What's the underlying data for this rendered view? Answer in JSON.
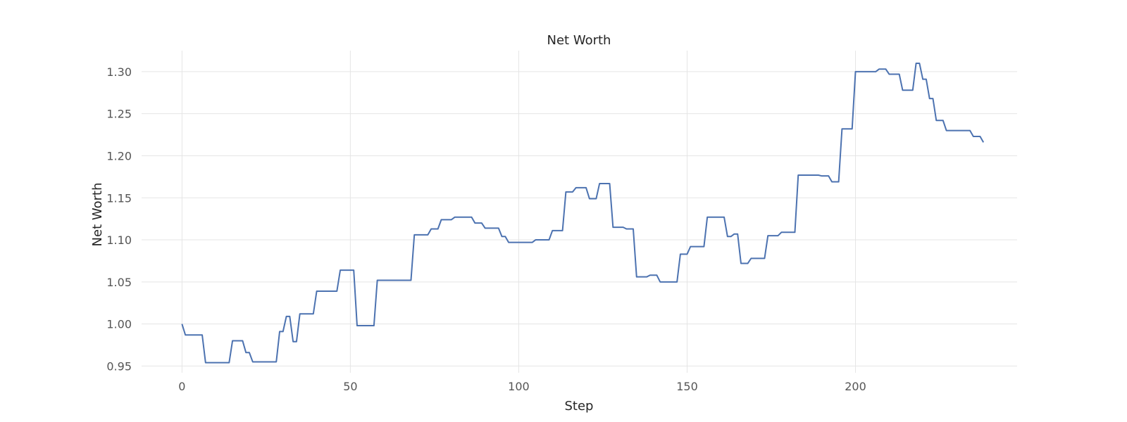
{
  "chart_data": {
    "type": "line",
    "title": "Net Worth",
    "xlabel": "Step",
    "ylabel": "Net Worth",
    "xlim": [
      -12,
      248
    ],
    "ylim": [
      0.942,
      1.325
    ],
    "xticks": [
      0,
      50,
      100,
      150,
      200
    ],
    "yticks": [
      0.95,
      1.0,
      1.05,
      1.1,
      1.15,
      1.2,
      1.25,
      1.3
    ],
    "grid": true,
    "legend": "none",
    "color": "#4c72b0",
    "series": [
      {
        "points": [
          [
            0,
            1.0
          ],
          [
            1,
            0.987
          ],
          [
            6,
            0.987
          ],
          [
            7,
            0.954
          ],
          [
            14,
            0.954
          ],
          [
            15,
            0.98
          ],
          [
            18,
            0.98
          ],
          [
            19,
            0.966
          ],
          [
            20,
            0.966
          ],
          [
            21,
            0.955
          ],
          [
            28,
            0.955
          ],
          [
            29,
            0.991
          ],
          [
            30,
            0.991
          ],
          [
            31,
            1.009
          ],
          [
            32,
            1.009
          ],
          [
            33,
            0.979
          ],
          [
            34,
            0.979
          ],
          [
            35,
            1.012
          ],
          [
            39,
            1.012
          ],
          [
            40,
            1.039
          ],
          [
            46,
            1.039
          ],
          [
            47,
            1.064
          ],
          [
            51,
            1.064
          ],
          [
            52,
            0.998
          ],
          [
            57,
            0.998
          ],
          [
            58,
            1.052
          ],
          [
            68,
            1.052
          ],
          [
            69,
            1.106
          ],
          [
            73,
            1.106
          ],
          [
            74,
            1.113
          ],
          [
            76,
            1.113
          ],
          [
            77,
            1.124
          ],
          [
            80,
            1.124
          ],
          [
            81,
            1.127
          ],
          [
            86,
            1.127
          ],
          [
            87,
            1.12
          ],
          [
            89,
            1.12
          ],
          [
            90,
            1.114
          ],
          [
            94,
            1.114
          ],
          [
            95,
            1.104
          ],
          [
            96,
            1.104
          ],
          [
            97,
            1.097
          ],
          [
            104,
            1.097
          ],
          [
            105,
            1.1
          ],
          [
            109,
            1.1
          ],
          [
            110,
            1.111
          ],
          [
            113,
            1.111
          ],
          [
            114,
            1.157
          ],
          [
            116,
            1.157
          ],
          [
            117,
            1.162
          ],
          [
            120,
            1.162
          ],
          [
            121,
            1.149
          ],
          [
            123,
            1.149
          ],
          [
            124,
            1.167
          ],
          [
            127,
            1.167
          ],
          [
            128,
            1.115
          ],
          [
            131,
            1.115
          ],
          [
            132,
            1.113
          ],
          [
            134,
            1.113
          ],
          [
            135,
            1.056
          ],
          [
            138,
            1.056
          ],
          [
            139,
            1.058
          ],
          [
            141,
            1.058
          ],
          [
            142,
            1.05
          ],
          [
            147,
            1.05
          ],
          [
            148,
            1.083
          ],
          [
            150,
            1.083
          ],
          [
            151,
            1.092
          ],
          [
            155,
            1.092
          ],
          [
            156,
            1.127
          ],
          [
            161,
            1.127
          ],
          [
            162,
            1.104
          ],
          [
            163,
            1.104
          ],
          [
            164,
            1.107
          ],
          [
            165,
            1.107
          ],
          [
            166,
            1.072
          ],
          [
            168,
            1.072
          ],
          [
            169,
            1.078
          ],
          [
            173,
            1.078
          ],
          [
            174,
            1.105
          ],
          [
            177,
            1.105
          ],
          [
            178,
            1.109
          ],
          [
            182,
            1.109
          ],
          [
            183,
            1.177
          ],
          [
            189,
            1.177
          ],
          [
            190,
            1.176
          ],
          [
            192,
            1.176
          ],
          [
            193,
            1.169
          ],
          [
            195,
            1.169
          ],
          [
            196,
            1.232
          ],
          [
            199,
            1.232
          ],
          [
            200,
            1.3
          ],
          [
            206,
            1.3
          ],
          [
            207,
            1.303
          ],
          [
            209,
            1.303
          ],
          [
            210,
            1.297
          ],
          [
            213,
            1.297
          ],
          [
            214,
            1.278
          ],
          [
            217,
            1.278
          ],
          [
            218,
            1.31
          ],
          [
            219,
            1.31
          ],
          [
            220,
            1.291
          ],
          [
            221,
            1.291
          ],
          [
            222,
            1.268
          ],
          [
            223,
            1.268
          ],
          [
            224,
            1.242
          ],
          [
            226,
            1.242
          ],
          [
            227,
            1.23
          ],
          [
            234,
            1.23
          ],
          [
            235,
            1.223
          ],
          [
            237,
            1.223
          ],
          [
            238,
            1.216
          ]
        ]
      }
    ]
  }
}
